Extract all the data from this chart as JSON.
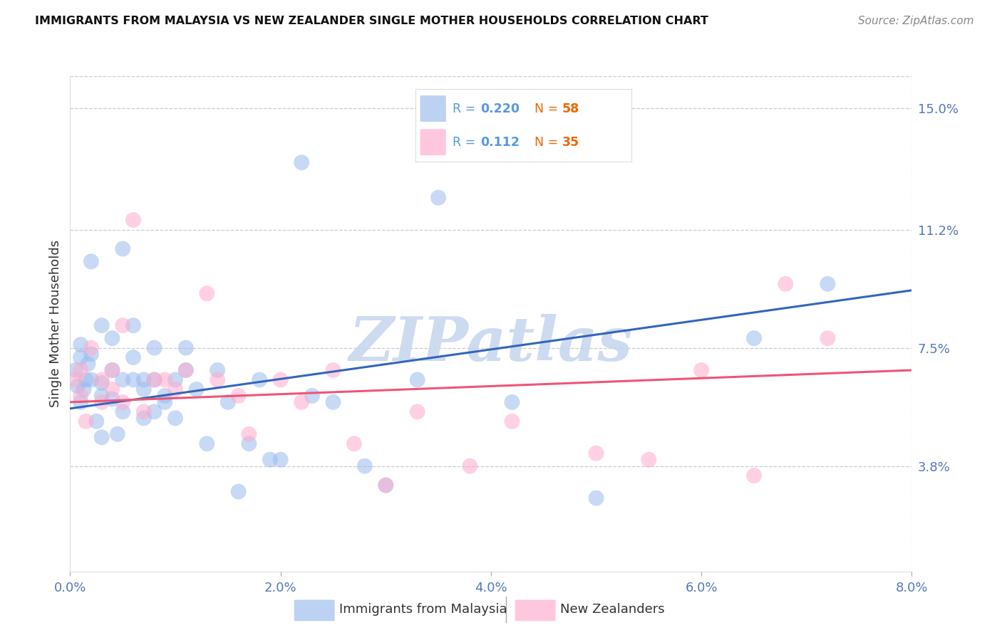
{
  "title": "IMMIGRANTS FROM MALAYSIA VS NEW ZEALANDER SINGLE MOTHER HOUSEHOLDS CORRELATION CHART",
  "source": "Source: ZipAtlas.com",
  "ylabel": "Single Mother Households",
  "y_tick_labels": [
    "3.8%",
    "7.5%",
    "11.2%",
    "15.0%"
  ],
  "y_tick_values": [
    0.038,
    0.075,
    0.112,
    0.15
  ],
  "x_tick_labels": [
    "0.0%",
    "2.0%",
    "4.0%",
    "6.0%",
    "8.0%"
  ],
  "x_tick_values": [
    0.0,
    0.02,
    0.04,
    0.06,
    0.08
  ],
  "x_min": 0.0,
  "x_max": 0.08,
  "y_min": 0.005,
  "y_max": 0.16,
  "legend_r_blue": "R = 0.220",
  "legend_n_blue": "N = 58",
  "legend_r_pink": "R =  0.112",
  "legend_n_pink": "N = 35",
  "legend_label_blue": "Immigrants from Malaysia",
  "legend_label_pink": "New Zealanders",
  "blue_fill": "#99BBEE",
  "pink_fill": "#FFAACC",
  "blue_line": "#3366BB",
  "pink_line": "#EE5577",
  "r_color": "#5599DD",
  "n_color": "#EE6600",
  "axis_tick_color": "#5577BB",
  "watermark": "ZIPatlas",
  "watermark_color": "#C5D5EE",
  "blue_dots_x": [
    0.0005,
    0.0007,
    0.001,
    0.001,
    0.001,
    0.0013,
    0.0015,
    0.0017,
    0.002,
    0.002,
    0.002,
    0.0025,
    0.003,
    0.003,
    0.003,
    0.003,
    0.004,
    0.004,
    0.004,
    0.0045,
    0.005,
    0.005,
    0.005,
    0.006,
    0.006,
    0.006,
    0.007,
    0.007,
    0.007,
    0.008,
    0.008,
    0.008,
    0.009,
    0.009,
    0.01,
    0.01,
    0.011,
    0.011,
    0.012,
    0.013,
    0.014,
    0.015,
    0.016,
    0.017,
    0.018,
    0.019,
    0.02,
    0.022,
    0.023,
    0.025,
    0.028,
    0.03,
    0.033,
    0.035,
    0.042,
    0.05,
    0.065,
    0.072
  ],
  "blue_dots_y": [
    0.068,
    0.063,
    0.072,
    0.058,
    0.076,
    0.062,
    0.065,
    0.07,
    0.102,
    0.065,
    0.073,
    0.052,
    0.082,
    0.064,
    0.047,
    0.06,
    0.068,
    0.078,
    0.059,
    0.048,
    0.106,
    0.065,
    0.055,
    0.082,
    0.065,
    0.072,
    0.065,
    0.053,
    0.062,
    0.075,
    0.065,
    0.055,
    0.058,
    0.06,
    0.065,
    0.053,
    0.068,
    0.075,
    0.062,
    0.045,
    0.068,
    0.058,
    0.03,
    0.045,
    0.065,
    0.04,
    0.04,
    0.133,
    0.06,
    0.058,
    0.038,
    0.032,
    0.065,
    0.122,
    0.058,
    0.028,
    0.078,
    0.095
  ],
  "pink_dots_x": [
    0.0005,
    0.001,
    0.001,
    0.0015,
    0.002,
    0.003,
    0.003,
    0.004,
    0.004,
    0.005,
    0.005,
    0.006,
    0.007,
    0.008,
    0.009,
    0.01,
    0.011,
    0.013,
    0.014,
    0.016,
    0.017,
    0.02,
    0.022,
    0.025,
    0.027,
    0.03,
    0.033,
    0.038,
    0.042,
    0.05,
    0.055,
    0.06,
    0.065,
    0.068,
    0.072
  ],
  "pink_dots_y": [
    0.065,
    0.06,
    0.068,
    0.052,
    0.075,
    0.065,
    0.058,
    0.062,
    0.068,
    0.058,
    0.082,
    0.115,
    0.055,
    0.065,
    0.065,
    0.062,
    0.068,
    0.092,
    0.065,
    0.06,
    0.048,
    0.065,
    0.058,
    0.068,
    0.045,
    0.032,
    0.055,
    0.038,
    0.052,
    0.042,
    0.04,
    0.068,
    0.035,
    0.095,
    0.078
  ],
  "blue_trendline_x0": 0.0,
  "blue_trendline_y0": 0.056,
  "blue_trendline_x1": 0.08,
  "blue_trendline_y1": 0.093,
  "pink_trendline_x0": 0.0,
  "pink_trendline_y0": 0.058,
  "pink_trendline_x1": 0.08,
  "pink_trendline_y1": 0.068
}
